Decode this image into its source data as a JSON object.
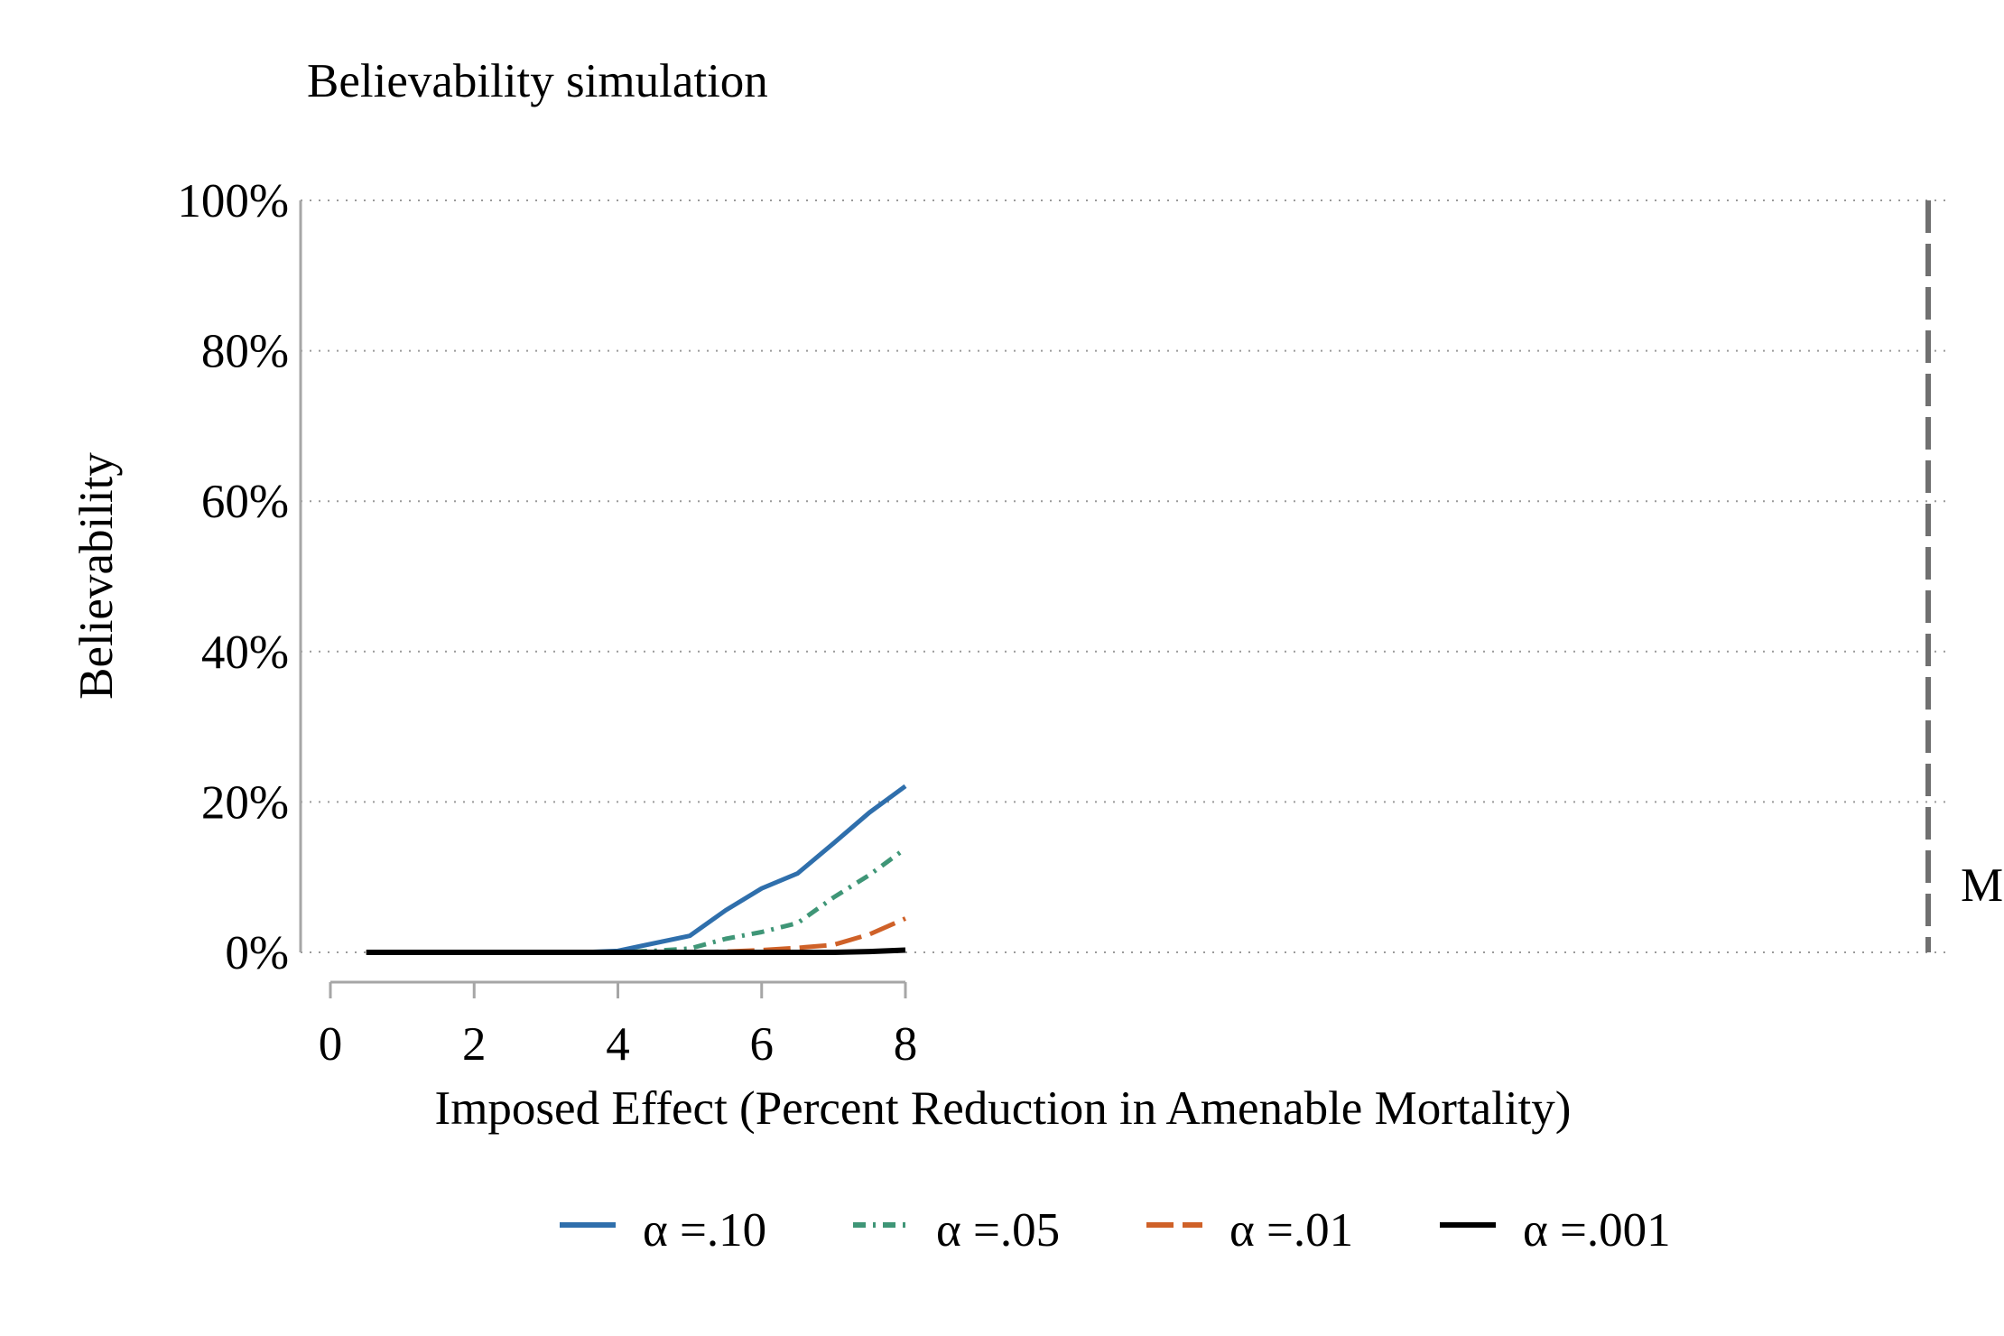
{
  "chart_data": {
    "type": "line",
    "title": "Believability simulation",
    "xlabel": "Imposed Effect (Percent Reduction in Amenable Mortality)",
    "ylabel": "Believability",
    "xlim": [
      0,
      8
    ],
    "ylim": [
      0,
      100
    ],
    "x_ticks": [
      "0",
      "2",
      "4",
      "6",
      "8"
    ],
    "y_ticks": [
      "0%",
      "20%",
      "40%",
      "60%",
      "80%",
      "100%"
    ],
    "grid": "horizontal-dotted",
    "reference_line_label": "M",
    "legend_position": "bottom",
    "x": [
      0.5,
      1,
      1.5,
      2,
      2.5,
      3,
      3.5,
      4,
      4.5,
      5,
      5.5,
      6,
      6.5,
      7,
      7.5,
      8
    ],
    "series": [
      {
        "name": "α =.10",
        "color": "#2f6fac",
        "dash": "solid",
        "values": [
          0,
          0,
          0,
          0,
          0,
          0,
          0,
          0.2,
          1.2,
          2.2,
          5.6,
          8.5,
          10.5,
          14.5,
          18.6,
          22.1
        ]
      },
      {
        "name": "α =.05",
        "color": "#3f9677",
        "dash": "dashdot",
        "values": [
          0,
          0,
          0,
          0,
          0,
          0,
          0,
          0,
          0.2,
          0.5,
          1.8,
          2.7,
          3.9,
          7.3,
          10.3,
          13.8
        ]
      },
      {
        "name": "α =.01",
        "color": "#cf6128",
        "dash": "longdash",
        "values": [
          0,
          0,
          0,
          0,
          0,
          0,
          0,
          0,
          0,
          0,
          0.1,
          0.3,
          0.6,
          1.0,
          2.4,
          4.5
        ]
      },
      {
        "name": "α =.001",
        "color": "#000000",
        "dash": "solid",
        "values": [
          0,
          0,
          0,
          0,
          0,
          0,
          0,
          0,
          0,
          0,
          0,
          0,
          0,
          0,
          0.1,
          0.3
        ]
      }
    ]
  }
}
